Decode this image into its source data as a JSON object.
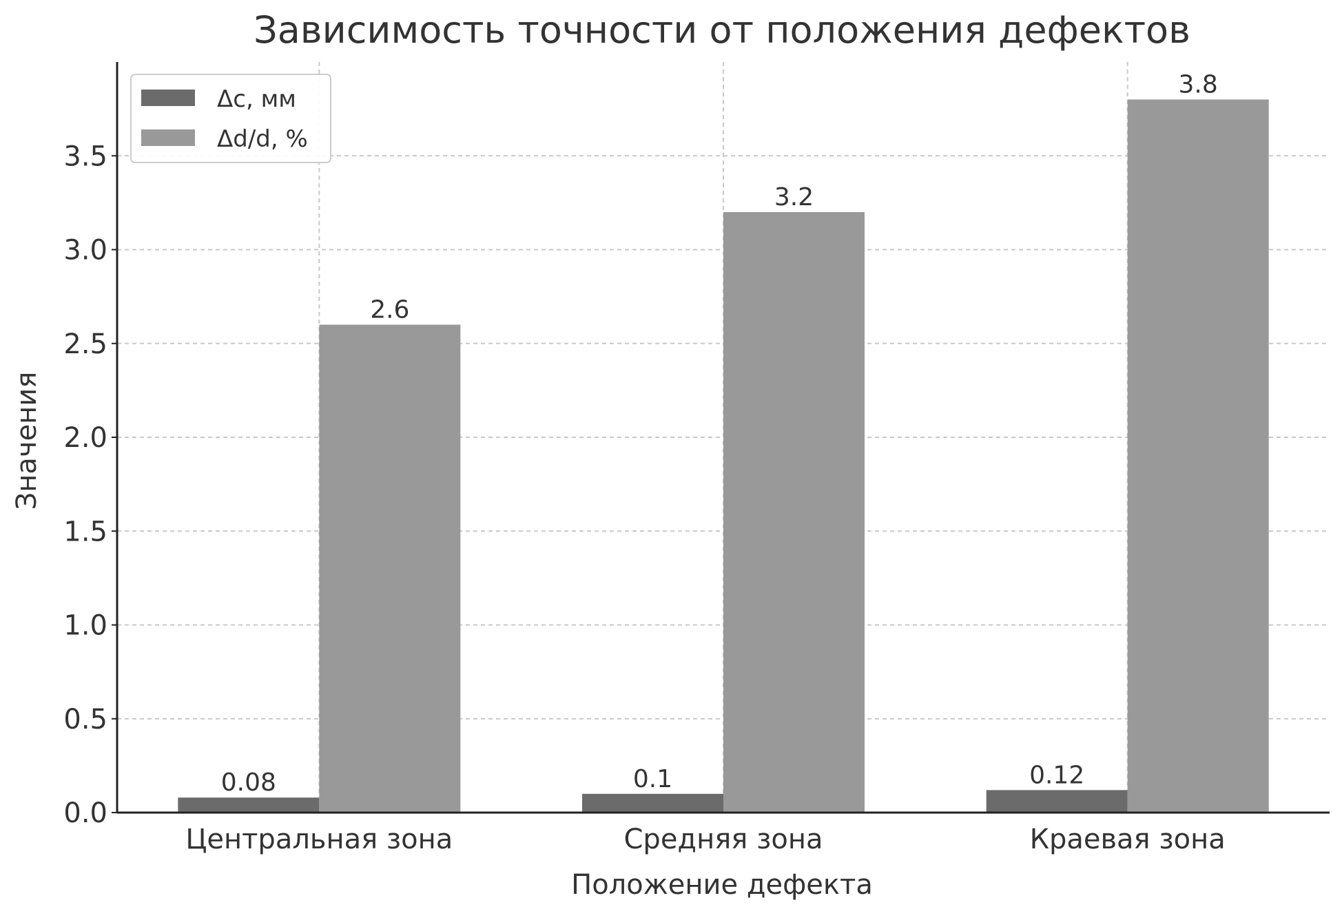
{
  "chart_data": {
    "type": "bar",
    "title": "Зависимость точности от положения дефектов",
    "xlabel": "Положение дефекта",
    "ylabel": "Значения",
    "categories": [
      "Центральная зона",
      "Средняя зона",
      "Краевая зона"
    ],
    "series": [
      {
        "name": "Δc, мм",
        "values": [
          0.08,
          0.1,
          0.12
        ],
        "labels": [
          "0.08",
          "0.1",
          "0.12"
        ],
        "color": "#6b6b6b"
      },
      {
        "name": "Δd/d, %",
        "values": [
          2.6,
          3.2,
          3.8
        ],
        "labels": [
          "2.6",
          "3.2",
          "3.8"
        ],
        "color": "#999999"
      }
    ],
    "ylim": [
      0,
      4.0
    ],
    "yticks": [
      "0.0",
      "0.5",
      "1.0",
      "1.5",
      "2.0",
      "2.5",
      "3.0",
      "3.5"
    ],
    "grid": true,
    "legend_position": "top-left",
    "colors": {
      "axis": "#222222",
      "grid": "#c8c8c8",
      "text": "#333333"
    }
  }
}
